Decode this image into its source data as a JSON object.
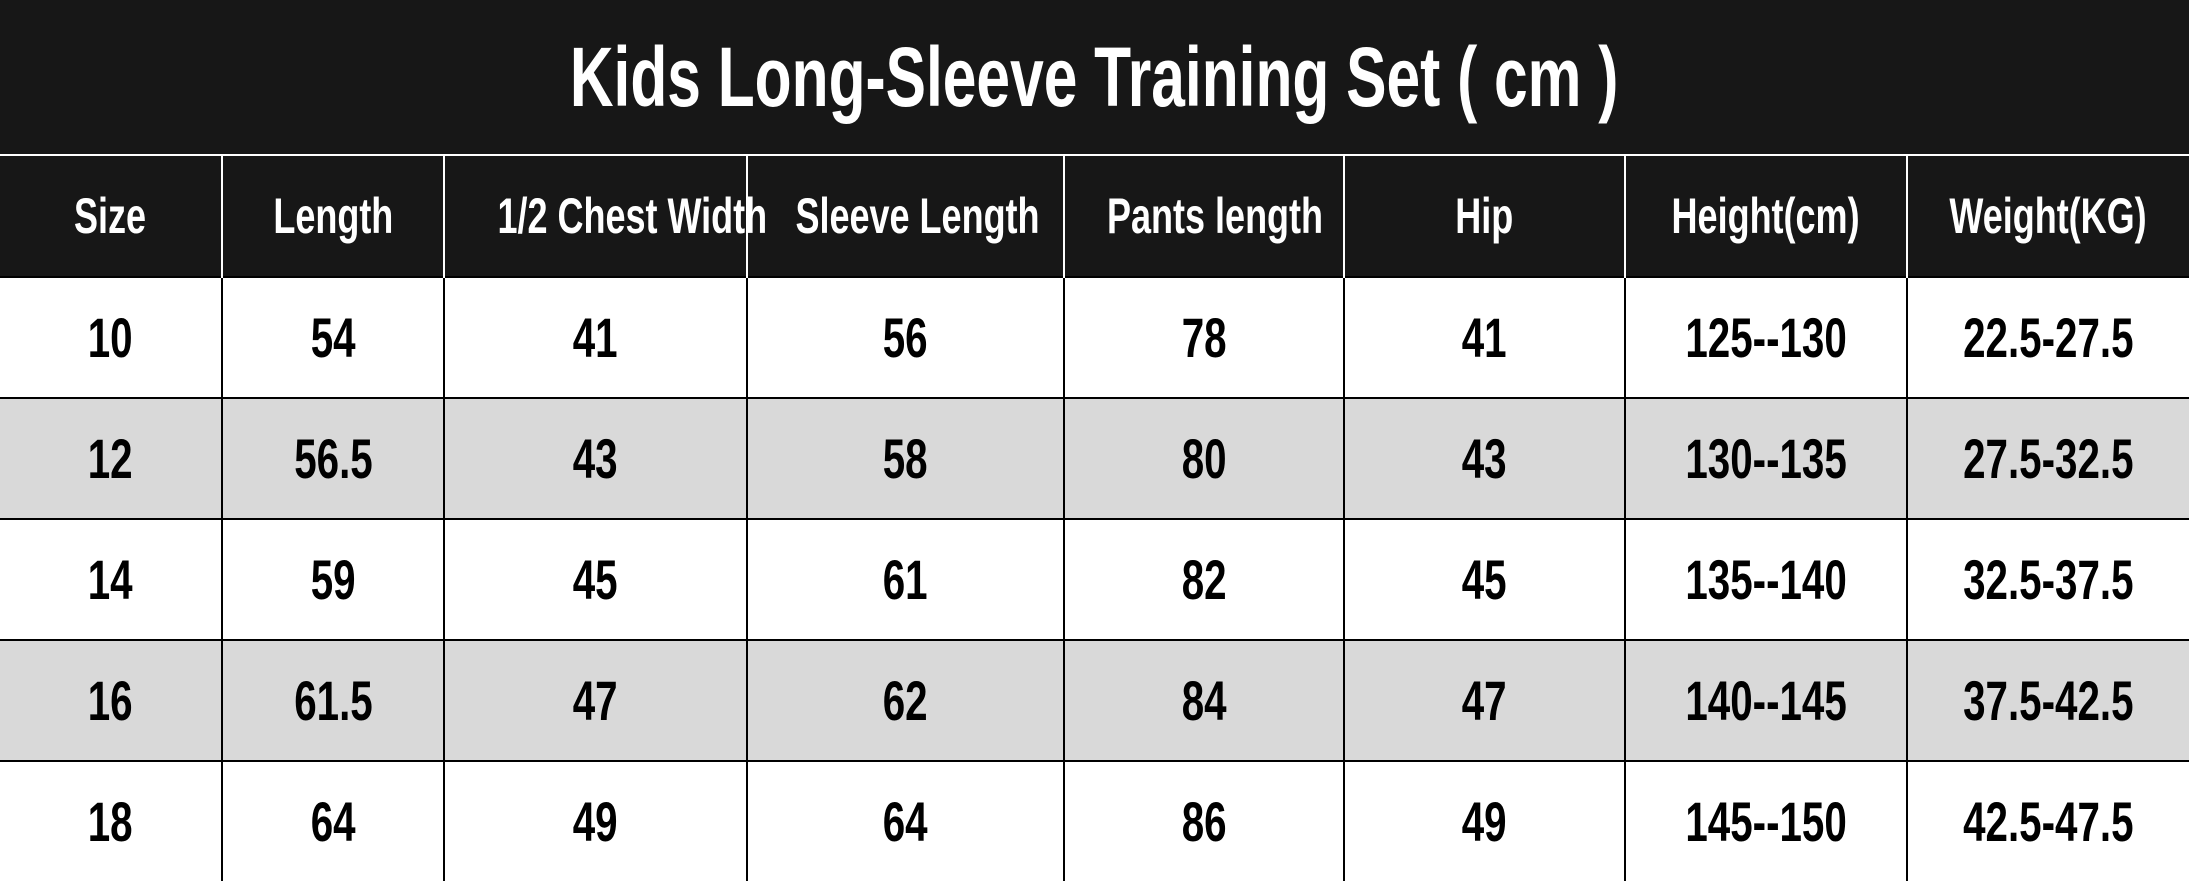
{
  "title": "Kids Long-Sleeve Training Set ( cm )",
  "colors": {
    "header_bg": "#171717",
    "header_text": "#ffffff",
    "alt_row_bg": "#d9d9d9",
    "row_bg": "#ffffff"
  },
  "columns": [
    "Size",
    "Length",
    "1/2 Chest Width",
    "Sleeve Length",
    "Pants length",
    "Hip",
    "Height(cm)",
    "Weight(KG)"
  ],
  "rows": [
    [
      "10",
      "54",
      "41",
      "56",
      "78",
      "41",
      "125--130",
      "22.5-27.5"
    ],
    [
      "12",
      "56.5",
      "43",
      "58",
      "80",
      "43",
      "130--135",
      "27.5-32.5"
    ],
    [
      "14",
      "59",
      "45",
      "61",
      "82",
      "45",
      "135--140",
      "32.5-37.5"
    ],
    [
      "16",
      "61.5",
      "47",
      "62",
      "84",
      "47",
      "140--145",
      "37.5-42.5"
    ],
    [
      "18",
      "64",
      "49",
      "64",
      "86",
      "49",
      "145--150",
      "42.5-47.5"
    ]
  ]
}
